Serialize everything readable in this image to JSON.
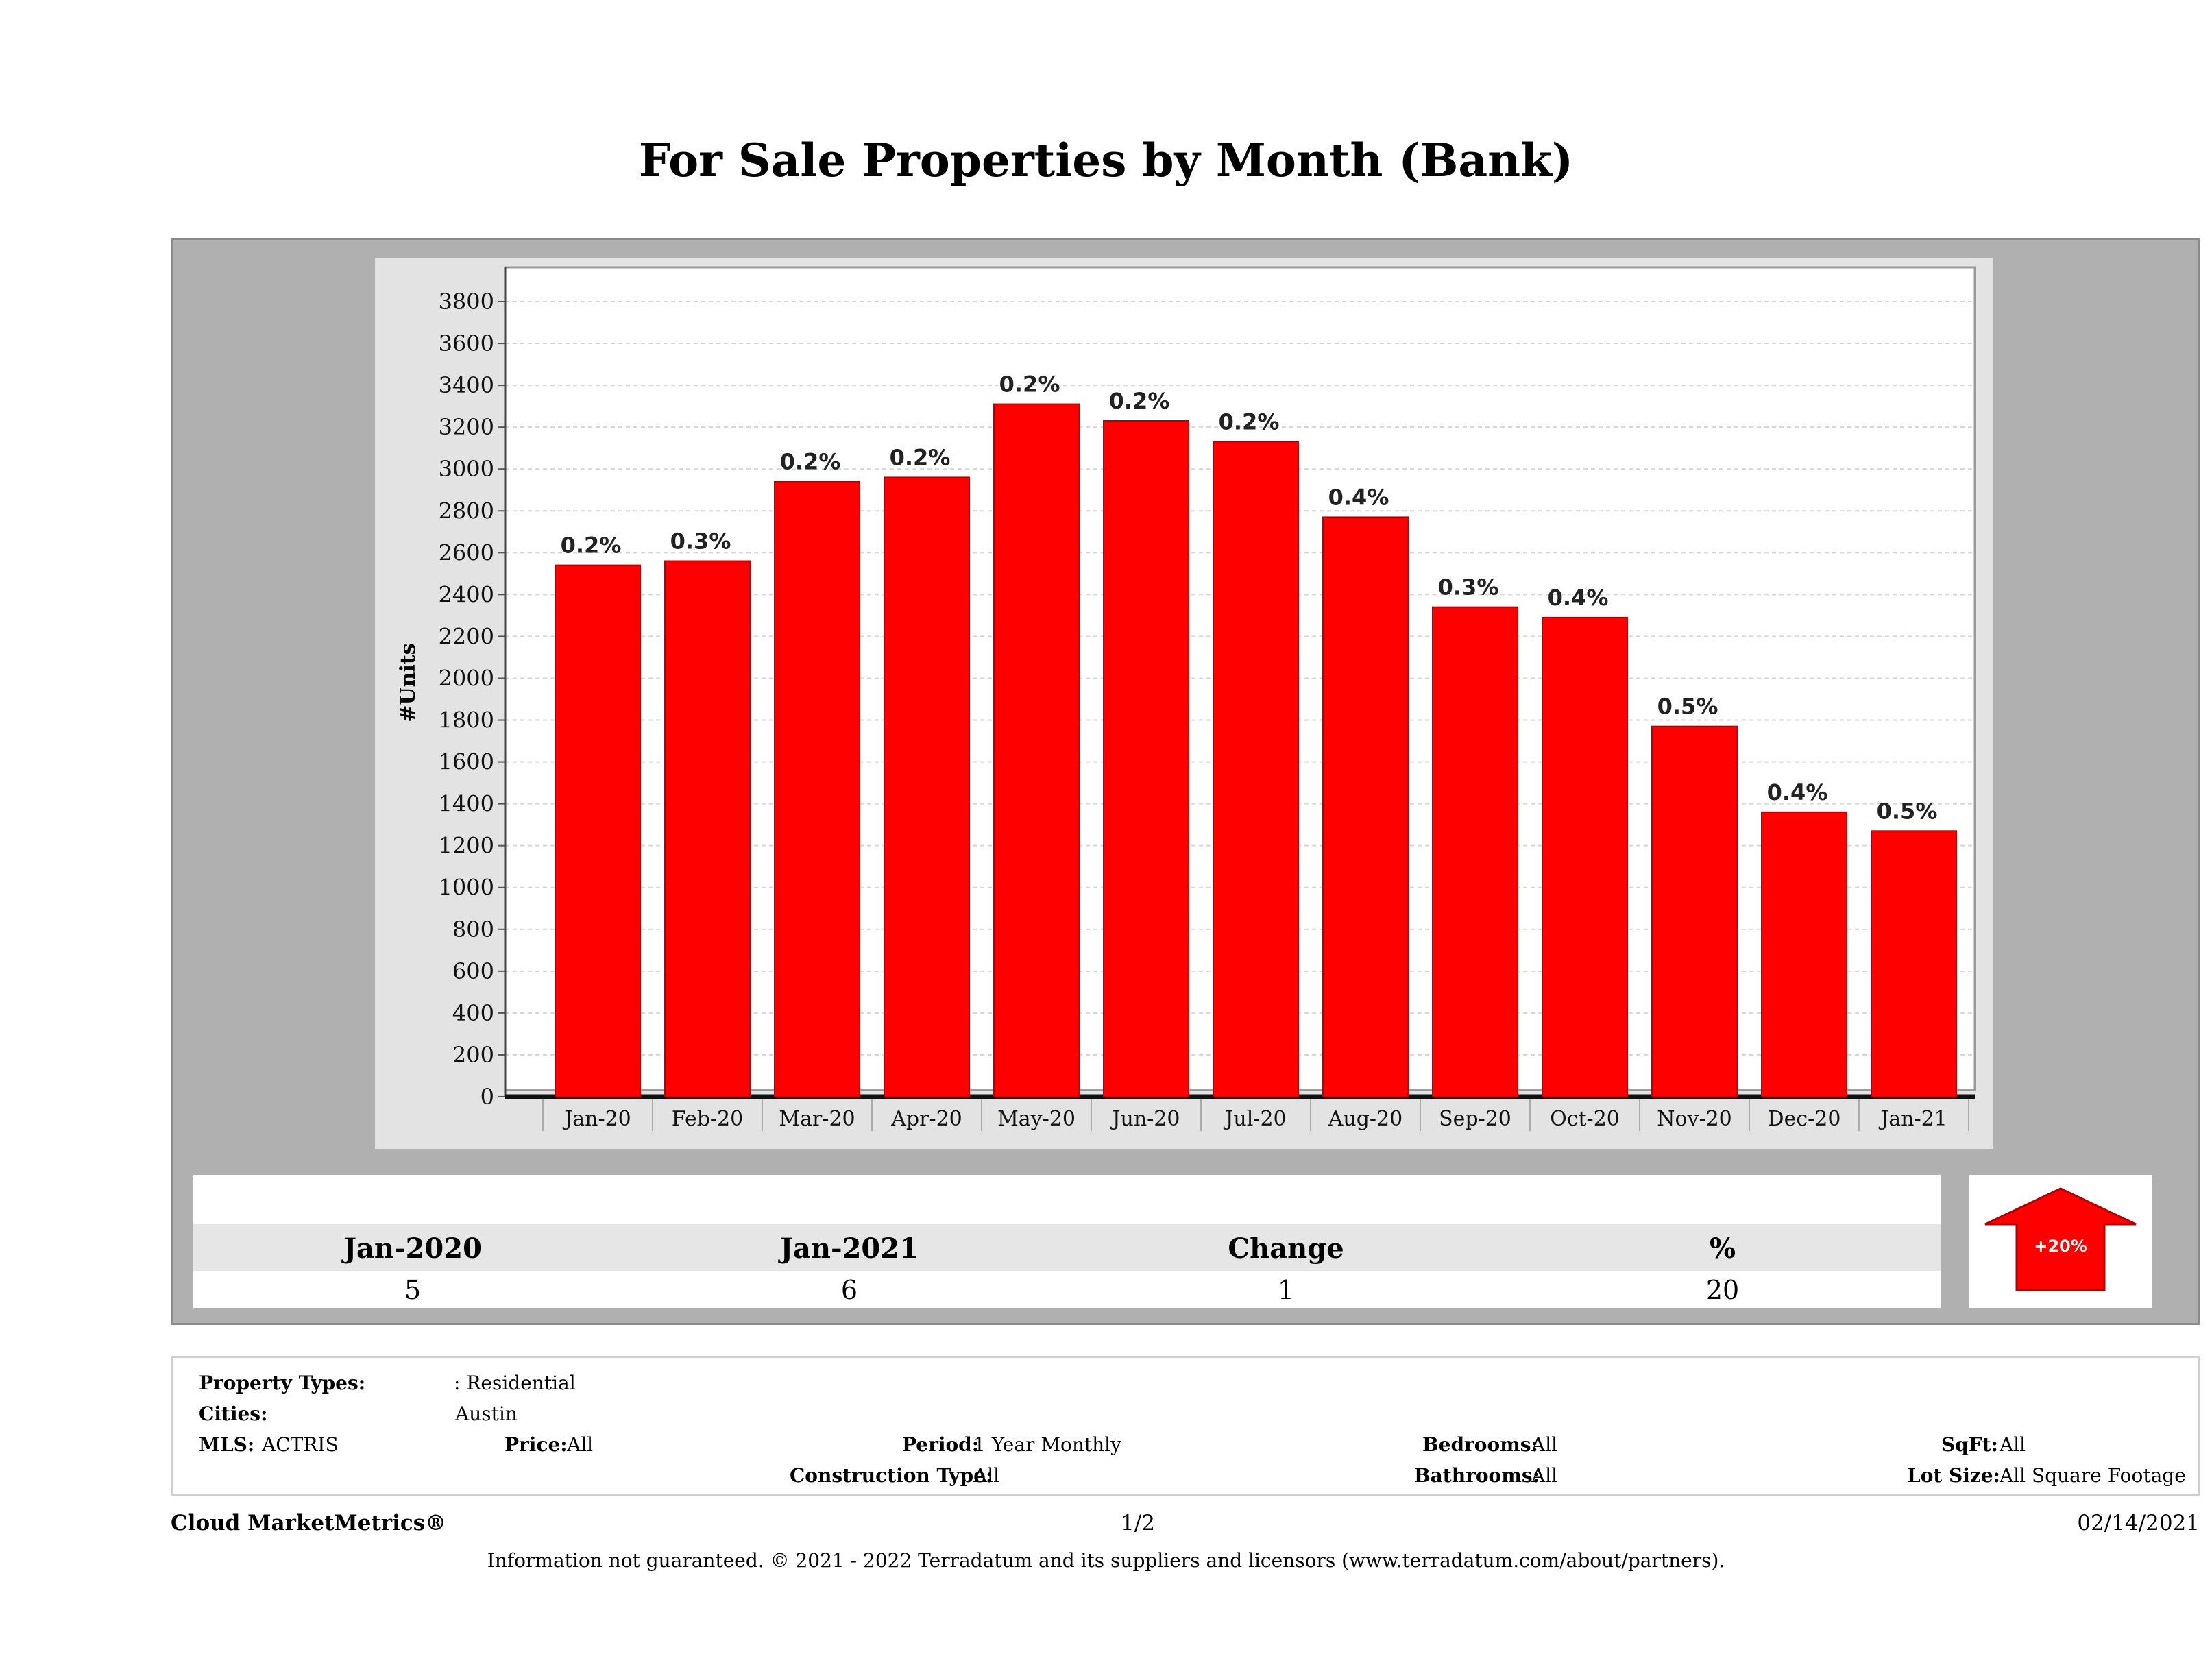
{
  "title": "For Sale Properties by Month (Bank)",
  "chart_data": {
    "type": "bar",
    "title": "For Sale Properties by Month (Bank)",
    "xlabel": "",
    "ylabel": "#Units",
    "ylim": [
      0,
      3900
    ],
    "yticks": [
      0,
      200,
      400,
      600,
      800,
      1000,
      1200,
      1400,
      1600,
      1800,
      2000,
      2200,
      2400,
      2600,
      2800,
      3000,
      3200,
      3400,
      3600,
      3800
    ],
    "categories": [
      "Jan-20",
      "Feb-20",
      "Mar-20",
      "Apr-20",
      "May-20",
      "Jun-20",
      "Jul-20",
      "Aug-20",
      "Sep-20",
      "Oct-20",
      "Nov-20",
      "Dec-20",
      "Jan-21"
    ],
    "values": [
      2540,
      2560,
      2940,
      2960,
      3310,
      3230,
      3130,
      2770,
      2340,
      2290,
      1770,
      1360,
      1270
    ],
    "labels": [
      "0.2%",
      "0.3%",
      "0.2%",
      "0.2%",
      "0.2%",
      "0.2%",
      "0.2%",
      "0.4%",
      "0.3%",
      "0.4%",
      "0.5%",
      "0.4%",
      "0.5%"
    ],
    "bar_color": "#ff0000",
    "grid": true
  },
  "summary": {
    "headers": [
      "Jan-2020",
      "Jan-2021",
      "Change",
      "%"
    ],
    "values": [
      "5",
      "6",
      "1",
      "20"
    ],
    "badge": "+20%",
    "badge_color": "#ff0000"
  },
  "filters": {
    "property_types_label": "Property Types:",
    "property_types_value": ": Residential",
    "cities_label": "Cities:",
    "cities_value": "Austin",
    "mls_label": "MLS:",
    "mls_value": "ACTRIS",
    "price_label": "Price:",
    "price_value": "All",
    "period_label": "Period:",
    "period_value": "1 Year Monthly",
    "construction_label": "Construction Type:",
    "construction_value": "All",
    "bedrooms_label": "Bedrooms:",
    "bedrooms_value": "All",
    "bathrooms_label": "Bathrooms:",
    "bathrooms_value": "All",
    "sqft_label": "SqFt:",
    "sqft_value": "All",
    "lotsize_label": "Lot Size:",
    "lotsize_value": "All Square Footage"
  },
  "footer": {
    "brand": "Cloud MarketMetrics®",
    "page": "1/2",
    "date": "02/14/2021",
    "disclaimer": "Information not guaranteed. © 2021 - 2022 Terradatum and its suppliers and licensors (www.terradatum.com/about/partners)."
  }
}
